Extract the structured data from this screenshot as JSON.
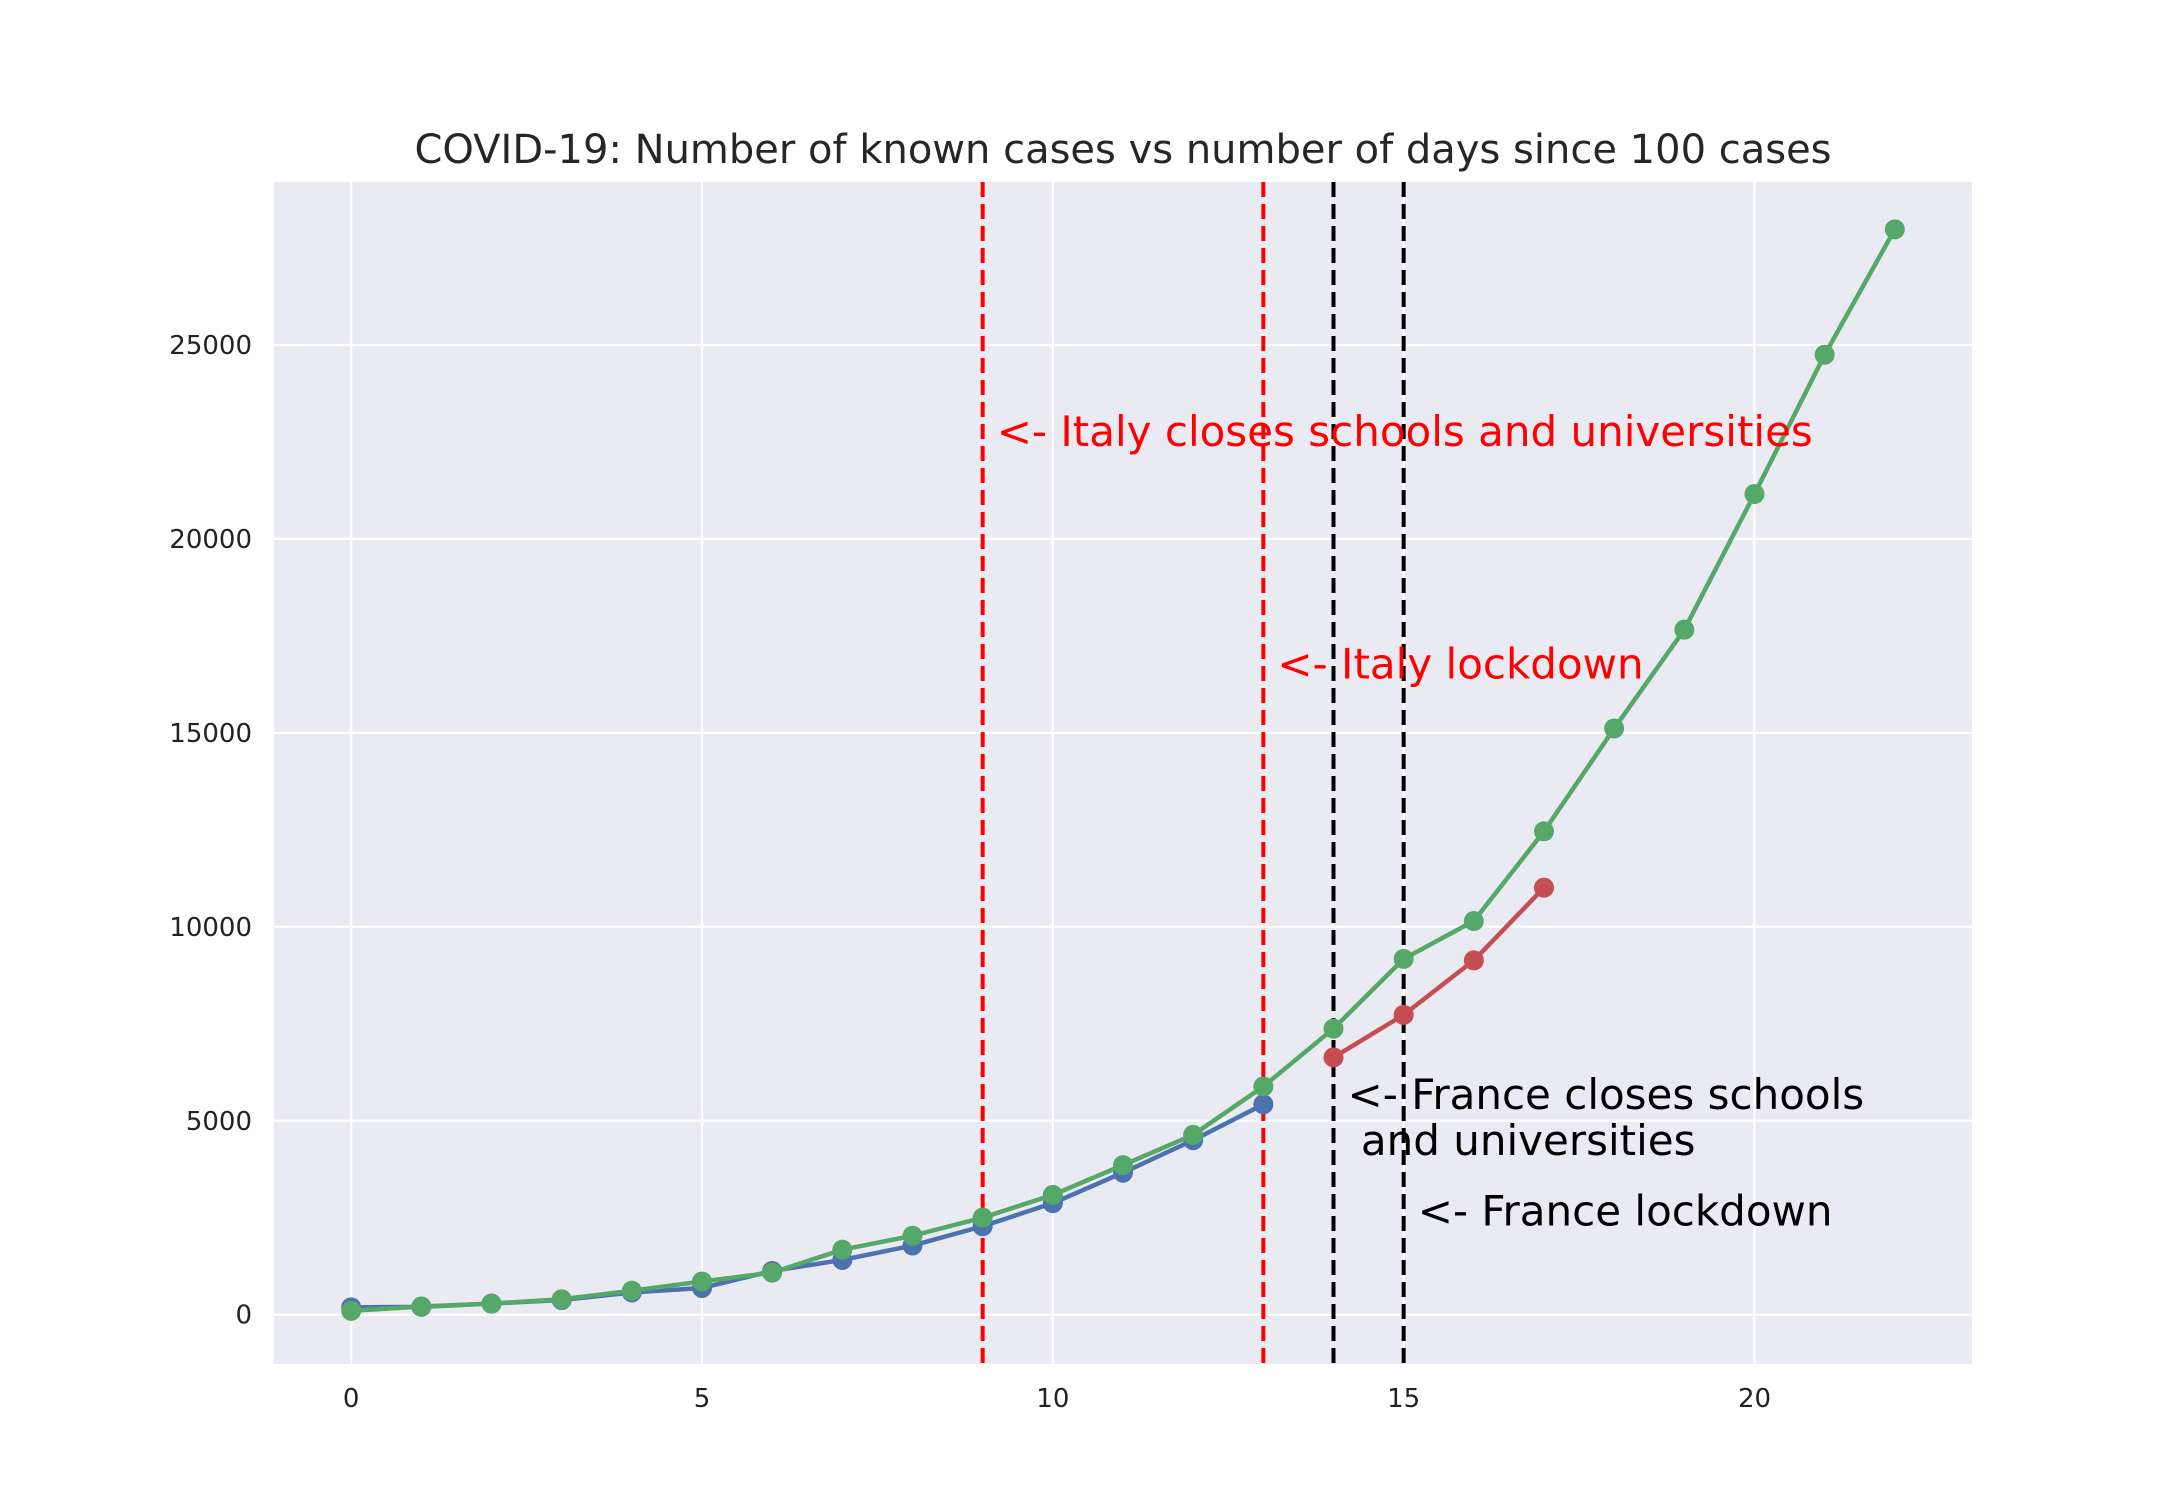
{
  "chart_data": {
    "type": "line",
    "title": "COVID-19: Number of known cases vs number of days since 100 cases",
    "xlabel": "",
    "ylabel": "",
    "xlim": [
      -1.1,
      23.1
    ],
    "ylim": [
      -1270,
      29200
    ],
    "x_ticks": [
      0,
      5,
      10,
      15,
      20
    ],
    "y_ticks": [
      0,
      5000,
      10000,
      15000,
      20000,
      25000
    ],
    "grid": true,
    "legend": "none",
    "series": [
      {
        "color": "#4c72b0",
        "x": [
          0,
          1,
          2,
          3,
          4,
          5,
          6,
          7,
          8,
          9,
          10,
          11,
          12,
          13
        ],
        "y": [
          191,
          204,
          288,
          380,
          574,
          690,
          1128,
          1412,
          1784,
          2281,
          2876,
          3661,
          4499,
          5423
        ]
      },
      {
        "color": "#c44e52",
        "x": [
          14,
          15,
          16,
          17
        ],
        "y": [
          6633,
          7730,
          9134,
          11010
        ]
      },
      {
        "color": "#55a868",
        "x": [
          0,
          1,
          2,
          3,
          4,
          5,
          6,
          7,
          8,
          9,
          10,
          11,
          12,
          13,
          14,
          15,
          16,
          17,
          18,
          19,
          20,
          21,
          22
        ],
        "y": [
          100,
          212,
          285,
          398,
          620,
          858,
          1085,
          1677,
          2036,
          2502,
          3089,
          3858,
          4636,
          5883,
          7375,
          9172,
          10149,
          12462,
          15113,
          17660,
          21157,
          24747,
          27980
        ]
      }
    ],
    "vlines": [
      {
        "x": 9,
        "color": "#ff0000"
      },
      {
        "x": 13,
        "color": "#ff0000"
      },
      {
        "x": 14,
        "color": "#000000"
      },
      {
        "x": 15,
        "color": "#000000"
      }
    ],
    "annotations": [
      {
        "x": 9.2,
        "y": 22400,
        "color": "#ff0000",
        "lines": [
          "<-  Italy closes schools and universities"
        ]
      },
      {
        "x": 13.2,
        "y": 16400,
        "color": "#ff0000",
        "lines": [
          "<-  Italy lockdown"
        ]
      },
      {
        "x": 14.2,
        "y": 5300,
        "color": "#000000",
        "lines": [
          "<-  France closes schools",
          "  and universities"
        ]
      },
      {
        "x": 15.2,
        "y": 2300,
        "color": "#000000",
        "lines": [
          "<-  France lockdown"
        ]
      }
    ],
    "colors": {
      "plot_background": "#eaeaf2",
      "grid": "#ffffff"
    }
  }
}
